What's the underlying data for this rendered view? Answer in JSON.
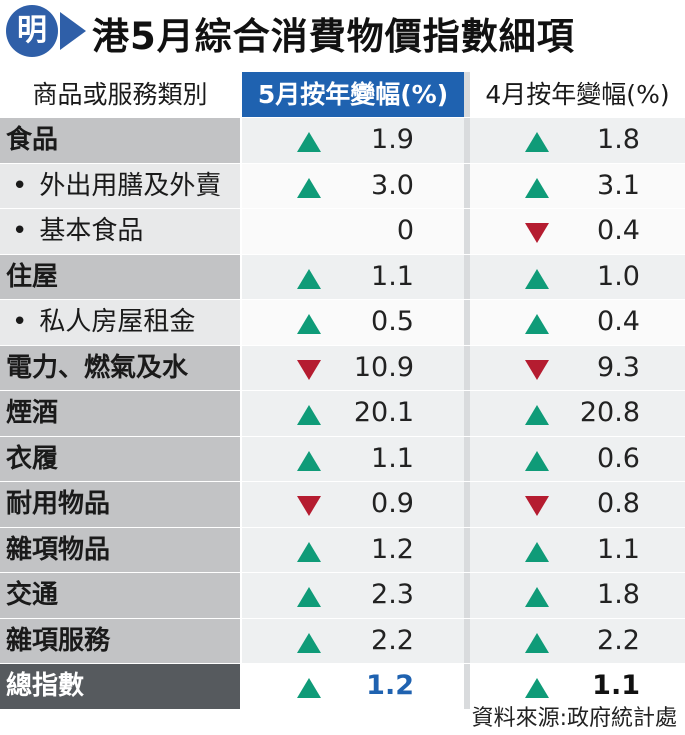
{
  "title": {
    "logo_char": "明",
    "text": "港5月綜合消費物價指數細項"
  },
  "table": {
    "headers": {
      "category": "商品或服務類別",
      "may": "5月按年變幅(%)",
      "april": "4月按年變幅(%)"
    },
    "rows": [
      {
        "label": "食品",
        "level": "main",
        "may": {
          "dir": "up",
          "value": "1.9"
        },
        "april": {
          "dir": "up",
          "value": "1.8"
        }
      },
      {
        "label": "外出用膳及外賣",
        "level": "sub",
        "may": {
          "dir": "up",
          "value": "3.0"
        },
        "april": {
          "dir": "up",
          "value": "3.1"
        }
      },
      {
        "label": "基本食品",
        "level": "sub",
        "may": {
          "dir": "none",
          "value": "0"
        },
        "april": {
          "dir": "down",
          "value": "0.4"
        }
      },
      {
        "label": "住屋",
        "level": "main",
        "may": {
          "dir": "up",
          "value": "1.1"
        },
        "april": {
          "dir": "up",
          "value": "1.0"
        }
      },
      {
        "label": "私人房屋租金",
        "level": "sub",
        "may": {
          "dir": "up",
          "value": "0.5"
        },
        "april": {
          "dir": "up",
          "value": "0.4"
        }
      },
      {
        "label": "電力、燃氣及水",
        "level": "main",
        "may": {
          "dir": "down",
          "value": "10.9"
        },
        "april": {
          "dir": "down",
          "value": "9.3"
        }
      },
      {
        "label": "煙酒",
        "level": "main",
        "may": {
          "dir": "up",
          "value": "20.1"
        },
        "april": {
          "dir": "up",
          "value": "20.8"
        }
      },
      {
        "label": "衣履",
        "level": "main",
        "may": {
          "dir": "up",
          "value": "1.1"
        },
        "april": {
          "dir": "up",
          "value": "0.6"
        }
      },
      {
        "label": "耐用物品",
        "level": "main",
        "may": {
          "dir": "down",
          "value": "0.9"
        },
        "april": {
          "dir": "down",
          "value": "0.8"
        }
      },
      {
        "label": "雜項物品",
        "level": "main",
        "may": {
          "dir": "up",
          "value": "1.2"
        },
        "april": {
          "dir": "up",
          "value": "1.1"
        }
      },
      {
        "label": "交通",
        "level": "main",
        "may": {
          "dir": "up",
          "value": "2.3"
        },
        "april": {
          "dir": "up",
          "value": "1.8"
        }
      },
      {
        "label": "雜項服務",
        "level": "main",
        "may": {
          "dir": "up",
          "value": "2.2"
        },
        "april": {
          "dir": "up",
          "value": "2.2"
        }
      },
      {
        "label": "總指數",
        "level": "total",
        "may": {
          "dir": "up",
          "value": "1.2"
        },
        "april": {
          "dir": "up",
          "value": "1.1"
        }
      }
    ]
  },
  "source": "資料來源:政府統計處",
  "colors": {
    "accent_blue": "#1f62b0",
    "up_green": "#0f9b78",
    "down_red": "#b51c30"
  }
}
